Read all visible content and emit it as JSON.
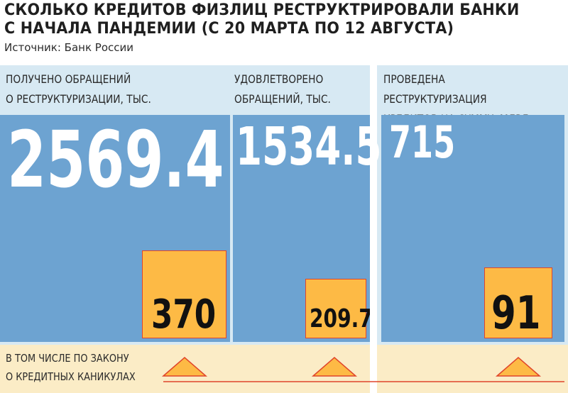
{
  "title": "СКОЛЬКО КРЕДИТОВ ФИЗЛИЦ РЕСТРУКТРИРОВАЛИ БАНКИ С НАЧАЛА ПАНДЕМИИ (С 20 МАРТА ПО 12 АВГУСТА)",
  "source": "Источник: Банк России",
  "bottom_label": "В ТОМ ЧИСЛЕ ПО ЗАКОНУ\nО КРЕДИТНЫХ КАНИКУЛАХ",
  "colors": {
    "blue": "#6da3d1",
    "light_blue": "#d7e9f3",
    "orange": "#fdba45",
    "red": "#e0452b",
    "cream": "#fbecc6"
  },
  "chart_data": {
    "type": "bar",
    "title": "СКОЛЬКО КРЕДИТОВ ФИЗЛИЦ РЕСТРУКТРИРОВАЛИ БАНКИ С НАЧАЛА ПАНДЕМИИ (С 20 МАРТА ПО 12 АВГУСТА)",
    "categories": [
      "ПОЛУЧЕНО ОБРАЩЕНИЙ\nО РЕСТРУКТУРИЗАЦИИ, ТЫС.",
      "УДОВЛЕТВОРЕНО\nОБРАЩЕНИЙ, ТЫС.",
      "ПРОВЕДЕНА РЕСТРУКТУРИЗАЦИЯ\nКРЕДИТОВ НА СУММУ, МЛРД РУБ."
    ],
    "series": [
      {
        "name": "",
        "values": [
          2569.4,
          1534.5,
          715
        ],
        "labels": [
          "2569.4",
          "1534.5",
          "715"
        ]
      },
      {
        "name": "В ТОМ ЧИСЛЕ ПО ЗАКОНУ\nО КРЕДИТНЫХ КАНИКУЛАХ",
        "values": [
          370,
          209.7,
          91
        ],
        "labels": [
          "370",
          "209.7",
          "91"
        ]
      }
    ]
  }
}
